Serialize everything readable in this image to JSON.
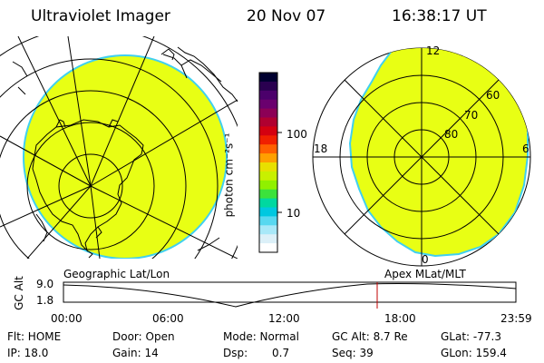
{
  "header": {
    "title": "Ultraviolet Imager",
    "date": "20 Nov 07",
    "time": "16:38:17 UT"
  },
  "colorbar": {
    "unit": "photon cm⁻²s⁻¹",
    "ticks": [
      "100",
      "10"
    ],
    "colors": [
      "#000030",
      "#2a0050",
      "#4b006b",
      "#6a006e",
      "#8c0056",
      "#b00030",
      "#d40010",
      "#f02000",
      "#ff6000",
      "#ffa000",
      "#e8e000",
      "#c8f000",
      "#90f000",
      "#3ce23c",
      "#00d8a0",
      "#00c8e0",
      "#58d8f0",
      "#a8e8f8",
      "#dcf0f8",
      "#ffffff"
    ]
  },
  "left_panel": {
    "label": "Geographic Lat/Lon",
    "fill_color": "#e8ff14",
    "edge_color": "#40d0f0"
  },
  "right_panel": {
    "label": "Apex MLat/MLT",
    "mlt_labels": [
      "12",
      "18",
      "6",
      "0"
    ],
    "mlat_labels": [
      "60",
      "70",
      "80"
    ],
    "fill_color": "#e8ff14",
    "edge_color": "#40d0f0"
  },
  "altitude_plot": {
    "ylabel": "GC Alt",
    "y_ticks": [
      "9.0",
      "1.8"
    ],
    "x_ticks": [
      "00:00",
      "06:00",
      "12:00",
      "18:00",
      "23:59"
    ],
    "marker_color": "#c00000",
    "marker_hour": 16.64
  },
  "info": {
    "row1": {
      "filter": "Flt: HOME",
      "door": "Door: Open",
      "mode": "Mode: Normal",
      "gc_alt": "GC Alt: 8.7 Re",
      "glat": "GLat: -77.3"
    },
    "row2": {
      "ip": "IP: 18.0",
      "gain": "Gain: 14",
      "dsp_label": "Dsp:",
      "dsp_value": "0.7",
      "seq": "Seq: 39",
      "glon": "GLon: 159.4"
    }
  }
}
